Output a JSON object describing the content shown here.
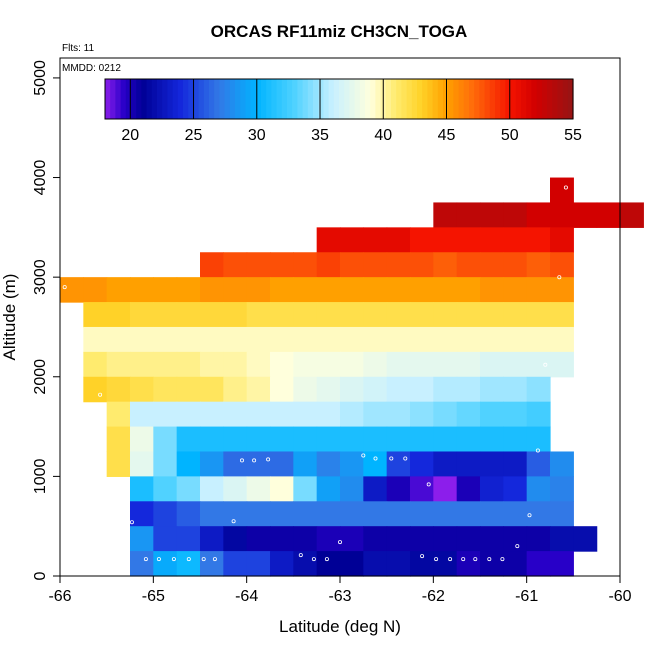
{
  "chart_data": {
    "type": "heatmap",
    "title": "ORCAS RF11miz CH3CN_TOGA",
    "xlabel": "Latitude (deg N)",
    "ylabel": "Altitude (m)",
    "xlim": [
      -66,
      -60
    ],
    "ylim": [
      0,
      5200
    ],
    "xticks": [
      -66,
      -65,
      -64,
      -63,
      -62,
      -61,
      -60
    ],
    "yticks": [
      0,
      1000,
      2000,
      3000,
      4000,
      5000
    ],
    "xtick_labels": [
      "-66",
      "-65",
      "-64",
      "-63",
      "-62",
      "-61",
      "-60"
    ],
    "ytick_labels": [
      "0",
      "1000",
      "2000",
      "3000",
      "4000",
      "5000"
    ],
    "annotations": {
      "flights": "Flts: 11",
      "mmdd": "MMDD: 0212"
    },
    "colorbar": {
      "range": [
        18,
        55
      ],
      "ticks": [
        20,
        25,
        30,
        35,
        40,
        45,
        50,
        55
      ],
      "tick_labels": [
        "20",
        "25",
        "30",
        "35",
        "40",
        "45",
        "50",
        "55"
      ]
    },
    "cell_size": {
      "dlat": 0.25,
      "dalt": 250
    },
    "rows": [
      {
        "alt": 3875,
        "start": -60.75,
        "values": [
          52
        ]
      },
      {
        "alt": 3625,
        "start": -62.0,
        "values": [
          53,
          53,
          53,
          53,
          52,
          52,
          52,
          52,
          53
        ]
      },
      {
        "alt": 3375,
        "start": -63.25,
        "values": [
          51,
          51,
          51,
          51,
          50,
          50,
          50,
          50,
          50,
          50,
          51
        ]
      },
      {
        "alt": 3125,
        "start": -64.5,
        "values": [
          48.5,
          48,
          48,
          48,
          48,
          48.5,
          48,
          48,
          48,
          48,
          47.5,
          48,
          48,
          48,
          47.5,
          48
        ]
      },
      {
        "alt": 2875,
        "start": -66.0,
        "values": [
          45.5,
          45.5,
          45,
          45,
          45,
          45,
          45.5,
          45.5,
          45.5,
          45,
          45,
          45,
          45,
          45,
          45,
          45,
          45,
          45,
          45.5,
          45.5,
          45.5,
          45.5
        ]
      },
      {
        "alt": 2625,
        "start": -65.75,
        "values": [
          43,
          43,
          42.5,
          42.5,
          42.5,
          42.5,
          42.5,
          42,
          42,
          42,
          42,
          42,
          42,
          42,
          42,
          42,
          42,
          42,
          42,
          42,
          42
        ]
      },
      {
        "alt": 2375,
        "start": -65.75,
        "values": [
          39.5,
          39.5,
          39.5,
          39.5,
          39.5,
          39.5,
          39.5,
          39.5,
          39.5,
          39.5,
          39.5,
          39.5,
          39.5,
          39.5,
          39.5,
          39.5,
          39.5,
          39.5,
          39.5,
          39.5,
          39.5
        ]
      },
      {
        "alt": 2125,
        "start": -65.75,
        "values": [
          41,
          40.5,
          40.5,
          40.5,
          40.5,
          40,
          40,
          39.5,
          39,
          38.5,
          38.5,
          38.5,
          38,
          37.5,
          37.5,
          37.5,
          37.5,
          37,
          37,
          37,
          37
        ]
      },
      {
        "alt": 1875,
        "start": -65.75,
        "values": [
          43,
          42.5,
          42,
          41.5,
          41.5,
          41.5,
          40.5,
          40,
          39,
          38,
          37.5,
          37,
          36.5,
          36,
          36,
          35.5,
          35.5,
          35,
          35,
          34.5
        ]
      },
      {
        "alt": 1625,
        "start": -65.5,
        "values": [
          41,
          36,
          36,
          36,
          36,
          36,
          36,
          36,
          36,
          36,
          35.5,
          35,
          35,
          34.5,
          34,
          33.5,
          33,
          33,
          32.5
        ]
      },
      {
        "alt": 1375,
        "start": -65.5,
        "values": [
          42,
          38,
          34,
          31,
          31,
          31,
          31,
          31,
          31,
          31,
          31,
          31,
          31,
          31,
          31,
          31,
          31,
          31,
          31
        ]
      },
      {
        "alt": 1125,
        "start": -65.5,
        "values": [
          42,
          37.5,
          34,
          30,
          28.5,
          26.5,
          26.5,
          26.5,
          29,
          27.5,
          28.5,
          30,
          25,
          24,
          23,
          23,
          23,
          23,
          26,
          28
        ]
      },
      {
        "alt": 875,
        "start": -65.25,
        "values": [
          31,
          33,
          34,
          36,
          37,
          38,
          39,
          34,
          29,
          28,
          23,
          20,
          19,
          17.5,
          20,
          23.5,
          24,
          28,
          27.5
        ]
      },
      {
        "alt": 625,
        "start": -65.25,
        "values": [
          24,
          25,
          26,
          27,
          27,
          27,
          27,
          27,
          27,
          27,
          27,
          27,
          27,
          27,
          27,
          27,
          27,
          27,
          27
        ]
      },
      {
        "alt": 375,
        "start": -65.25,
        "values": [
          28.5,
          25,
          25,
          23,
          21.5,
          20.5,
          20.5,
          20.5,
          20,
          20,
          20.5,
          20.5,
          20.5,
          20.5,
          20.5,
          20.5,
          20.5,
          20.5,
          22,
          22
        ]
      },
      {
        "alt": 125,
        "start": -65.25,
        "values": [
          27,
          29.5,
          30.5,
          27,
          25,
          25,
          23,
          22,
          21,
          21,
          22,
          22,
          21.5,
          21.5,
          20,
          20.5,
          20.5,
          19.5,
          19.5
        ]
      }
    ],
    "points": [
      [
        -65.08,
        170
      ],
      [
        -64.94,
        170
      ],
      [
        -64.78,
        170
      ],
      [
        -64.62,
        170
      ],
      [
        -64.46,
        170
      ],
      [
        -64.34,
        170
      ],
      [
        -63.42,
        210
      ],
      [
        -63.28,
        170
      ],
      [
        -63.14,
        170
      ],
      [
        -62.12,
        200
      ],
      [
        -61.97,
        170
      ],
      [
        -61.82,
        170
      ],
      [
        -61.68,
        170
      ],
      [
        -61.55,
        170
      ],
      [
        -61.4,
        170
      ],
      [
        -61.26,
        170
      ],
      [
        -61.1,
        300
      ],
      [
        -60.97,
        610
      ],
      [
        -65.23,
        540
      ],
      [
        -64.14,
        550
      ],
      [
        -63.0,
        340
      ],
      [
        -62.05,
        920
      ],
      [
        -62.75,
        1210
      ],
      [
        -62.62,
        1180
      ],
      [
        -62.45,
        1180
      ],
      [
        -62.3,
        1180
      ],
      [
        -64.05,
        1160
      ],
      [
        -63.92,
        1160
      ],
      [
        -63.77,
        1170
      ],
      [
        -60.88,
        1260
      ],
      [
        -60.8,
        2120
      ],
      [
        -60.65,
        3000
      ],
      [
        -60.58,
        3900
      ],
      [
        -65.95,
        2900
      ],
      [
        -65.57,
        1820
      ]
    ]
  }
}
